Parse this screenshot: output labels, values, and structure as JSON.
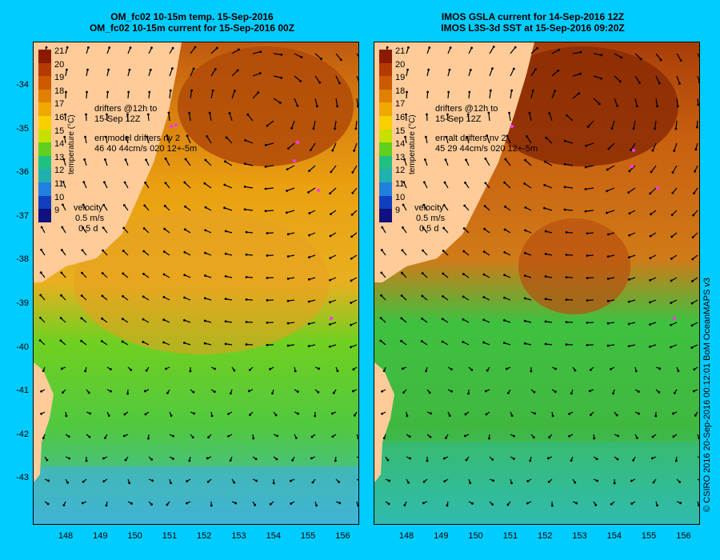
{
  "panels": [
    {
      "title_line1": "OM_fc02 10-15m temp. 15-Sep-2016",
      "title_line2": "OM_fc02 10-15m current for 15-Sep-2016 00Z",
      "drifters": [
        "drifters @12h to",
        "15-Sep 12Z"
      ],
      "err": [
        "err model drifters nv 2",
        "46 40 44cm/s 020 12+-5m"
      ],
      "velocity": [
        "velocity",
        "0.5 m/s",
        "0.5 d"
      ]
    },
    {
      "title_line1": "IMOS GSLA current for 14-Sep-2016 12Z",
      "title_line2": "IMOS L3S-3d SST at 15-Sep-2016 09:20Z",
      "drifters": [
        "drifters @12h to",
        "15-Sep 12Z"
      ],
      "err": [
        "err alt drifters nv 2",
        "45 29 44cm/s 020 12+-5m"
      ],
      "velocity": [
        "velocity",
        "0.5 m/s",
        "0.5 d"
      ]
    }
  ],
  "colorbar": {
    "title": "temperature (°C)",
    "ticks": [
      "21",
      "20",
      "19",
      "18",
      "17",
      "16",
      "15",
      "14",
      "13",
      "12",
      "11",
      "10",
      "9"
    ],
    "colors": [
      "#8b1a00",
      "#b33b00",
      "#cc5a00",
      "#e08000",
      "#f0a800",
      "#f8d000",
      "#c8e000",
      "#60d020",
      "#20c080",
      "#20b0b0",
      "#2080e0",
      "#1040c0",
      "#101080"
    ]
  },
  "axes": {
    "lat_labels": [
      "-34",
      "-35",
      "-36",
      "-37",
      "-38",
      "-39",
      "-40",
      "-41",
      "-42",
      "-43"
    ],
    "lon_labels": [
      "148",
      "149",
      "150",
      "151",
      "152",
      "153",
      "154",
      "155",
      "156"
    ]
  },
  "credit": "© CSIRO 2016   20-Sep-2016 00:12:01 BoM OceanMAPS v3",
  "colors": {
    "land": "#ffcc99",
    "background": "#00ccff",
    "drifter": "#ff33ff"
  }
}
